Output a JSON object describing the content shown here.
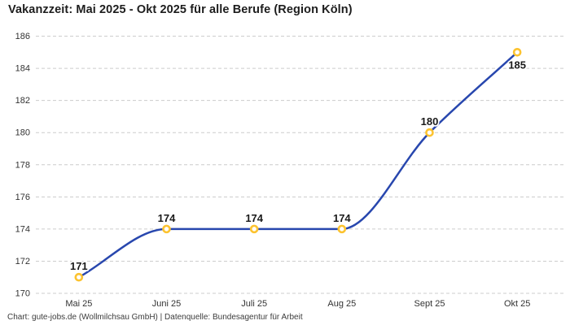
{
  "title": "Vakanzzeit: Mai 2025 - Okt 2025 für alle Berufe (Region Köln)",
  "footer": "Chart: gute-jobs.de (Wollmilchsau GmbH) | Datenquelle: Bundesagentur für Arbeit",
  "colors": {
    "background": "#ffffff",
    "line": "#2847ae",
    "marker_ring": "#fcc330",
    "marker_fill": "#ffffff",
    "grid": "#cccccc",
    "title_text": "#1d1d1d",
    "axis_text": "#333333",
    "label_text": "#1a1a1a"
  },
  "chart_data": {
    "type": "line",
    "title": "Vakanzzeit: Mai 2025 - Okt 2025 für alle Berufe (Region Köln)",
    "categories": [
      "Mai 25",
      "Juni 25",
      "Juli 25",
      "Aug 25",
      "Sept 25",
      "Okt 25"
    ],
    "values": [
      171,
      174,
      174,
      174,
      180,
      185
    ],
    "data_labels": [
      "171",
      "174",
      "174",
      "174",
      "180",
      "185"
    ],
    "label_positions": [
      "above",
      "above",
      "above",
      "above",
      "above",
      "below"
    ],
    "xlabel": "",
    "ylabel": "",
    "ylim": [
      170,
      186
    ],
    "yticks": [
      170,
      172,
      174,
      176,
      178,
      180,
      182,
      184,
      186
    ],
    "grid": "horizontal-dashed",
    "legend": "none",
    "curve": "monotone",
    "source": "Chart: gute-jobs.de (Wollmilchsau GmbH) | Datenquelle: Bundesagentur für Arbeit"
  }
}
